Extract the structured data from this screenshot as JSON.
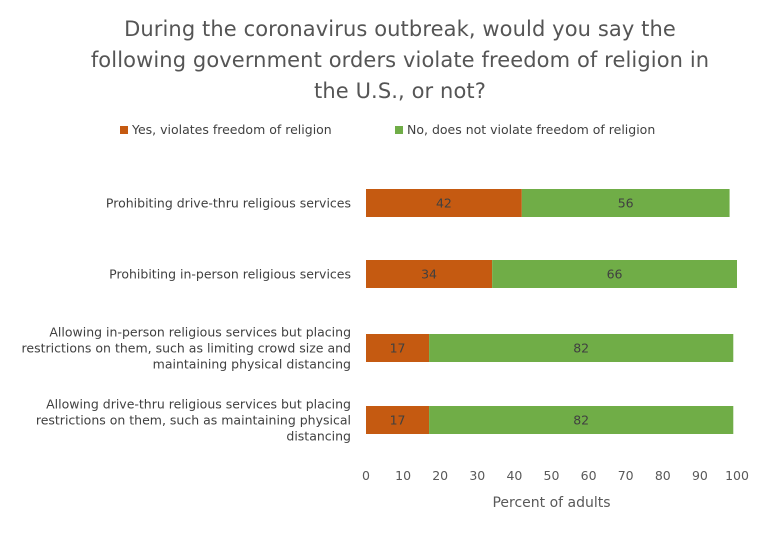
{
  "title_lines": [
    "During the coronavirus outbreak, would you say the",
    "following government orders violate freedom of religion in",
    "the U.S., or not?"
  ],
  "chart_data": {
    "type": "bar",
    "orientation": "horizontal",
    "stacked": true,
    "title": "During the coronavirus outbreak, would you say the following government orders violate freedom of religion in the U.S., or not?",
    "categories": [
      [
        "Prohibiting drive-thru religious services"
      ],
      [
        "Prohibiting in-person religious services"
      ],
      [
        "Allowing in-person religious services but placing",
        "restrictions on them, such as limiting crowd size and",
        "maintaining physical distancing"
      ],
      [
        "Allowing drive-thru religious services but placing",
        "restrictions on them, such as maintaining physical",
        "distancing"
      ]
    ],
    "series": [
      {
        "name": "Yes, violates freedom of religion",
        "color": "#c55a11",
        "values": [
          42,
          34,
          17,
          17
        ]
      },
      {
        "name": "No, does not violate freedom of religion",
        "color": "#70ad47",
        "values": [
          56,
          66,
          82,
          82
        ]
      }
    ],
    "xlabel": "Percent of adults",
    "xlim": [
      0,
      100
    ],
    "xticks": [
      0,
      10,
      20,
      30,
      40,
      50,
      60,
      70,
      80,
      90,
      100
    ],
    "grid": false,
    "legend_position": "top"
  }
}
